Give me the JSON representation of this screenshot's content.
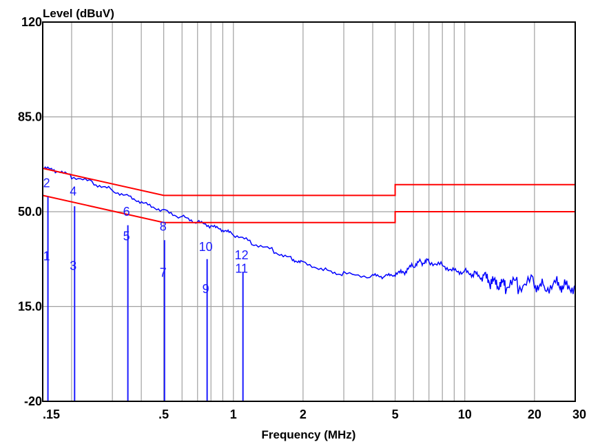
{
  "chart_data": {
    "type": "line",
    "title": "",
    "xlabel": "Frequency (MHz)",
    "ylabel": "Level (dBuV)",
    "x_scale": "log",
    "xlim": [
      0.15,
      30
    ],
    "ylim": [
      -20,
      120
    ],
    "x_ticks": [
      {
        "value": 0.15,
        "label": ".15"
      },
      {
        "value": 0.5,
        "label": ".5"
      },
      {
        "value": 1,
        "label": "1"
      },
      {
        "value": 2,
        "label": "2"
      },
      {
        "value": 5,
        "label": "5"
      },
      {
        "value": 10,
        "label": "10"
      },
      {
        "value": 20,
        "label": "20"
      },
      {
        "value": 30,
        "label": "30"
      }
    ],
    "y_ticks": [
      {
        "value": 120,
        "label": "120"
      },
      {
        "value": 85,
        "label": "85.0"
      },
      {
        "value": 50,
        "label": "50.0"
      },
      {
        "value": 15,
        "label": "15.0"
      },
      {
        "value": -20,
        "label": "-20"
      }
    ],
    "grid": true,
    "colors": {
      "measurement": "#0000ff",
      "limits": "#ff0000",
      "markers": "#1a1aff",
      "grid": "#a0a0a0"
    },
    "series": [
      {
        "x": [
          0.15,
          0.17,
          0.2,
          0.25,
          0.3,
          0.36,
          0.42,
          0.5,
          0.6,
          0.7,
          0.8,
          0.9,
          1.0,
          1.2,
          1.5,
          1.8,
          2.0,
          2.5,
          3.0,
          4.0,
          4.5,
          5.0,
          5.5,
          6.0,
          6.5,
          7.0,
          8.0,
          9.0,
          10.0,
          11.0,
          12.0,
          13.0,
          14.0,
          15.0,
          17.0,
          20.0,
          22.0,
          25.0,
          27.0,
          30.0
        ],
        "y": [
          66,
          65,
          63,
          60.5,
          58,
          55.5,
          53,
          50.5,
          48,
          46,
          44.5,
          43,
          41.5,
          38.5,
          35.5,
          32.5,
          31.5,
          28.5,
          27,
          26.2,
          26,
          26.5,
          27.5,
          30,
          31.5,
          31.8,
          30.5,
          28.5,
          28,
          27,
          25.5,
          23.5,
          22,
          22.5,
          23,
          24,
          22.5,
          24.5,
          23,
          23
        ]
      },
      {
        "x": [
          0.15,
          0.5,
          5,
          5,
          30
        ],
        "y": [
          66,
          56,
          56,
          60,
          60
        ]
      },
      {
        "x": [
          0.15,
          0.5,
          5,
          5,
          30
        ],
        "y": [
          56,
          46,
          46,
          50,
          50
        ]
      }
    ],
    "markers": [
      {
        "label": "1",
        "freq": 0.158,
        "level": 55.5,
        "label_level": 32
      },
      {
        "label": "2",
        "freq": 0.158,
        "level": 55.5,
        "label_level": 59
      },
      {
        "label": "3",
        "freq": 0.206,
        "level": 52,
        "label_level": 28.5
      },
      {
        "label": "4",
        "freq": 0.206,
        "level": 52,
        "label_level": 56
      },
      {
        "label": "5",
        "freq": 0.35,
        "level": 45,
        "label_level": 39.5
      },
      {
        "label": "6",
        "freq": 0.35,
        "level": 45,
        "label_level": 48.5
      },
      {
        "label": "7",
        "freq": 0.504,
        "level": 39.5,
        "label_level": 26
      },
      {
        "label": "8",
        "freq": 0.504,
        "level": 39.5,
        "label_level": 43
      },
      {
        "label": "9",
        "freq": 0.77,
        "level": 32.5,
        "label_level": 20
      },
      {
        "label": "10",
        "freq": 0.77,
        "level": 32.5,
        "label_level": 35.5
      },
      {
        "label": "11",
        "freq": 1.1,
        "level": 27.5,
        "label_level": 27.5
      },
      {
        "label": "12",
        "freq": 1.1,
        "level": 27.5,
        "label_level": 32.5
      }
    ]
  }
}
